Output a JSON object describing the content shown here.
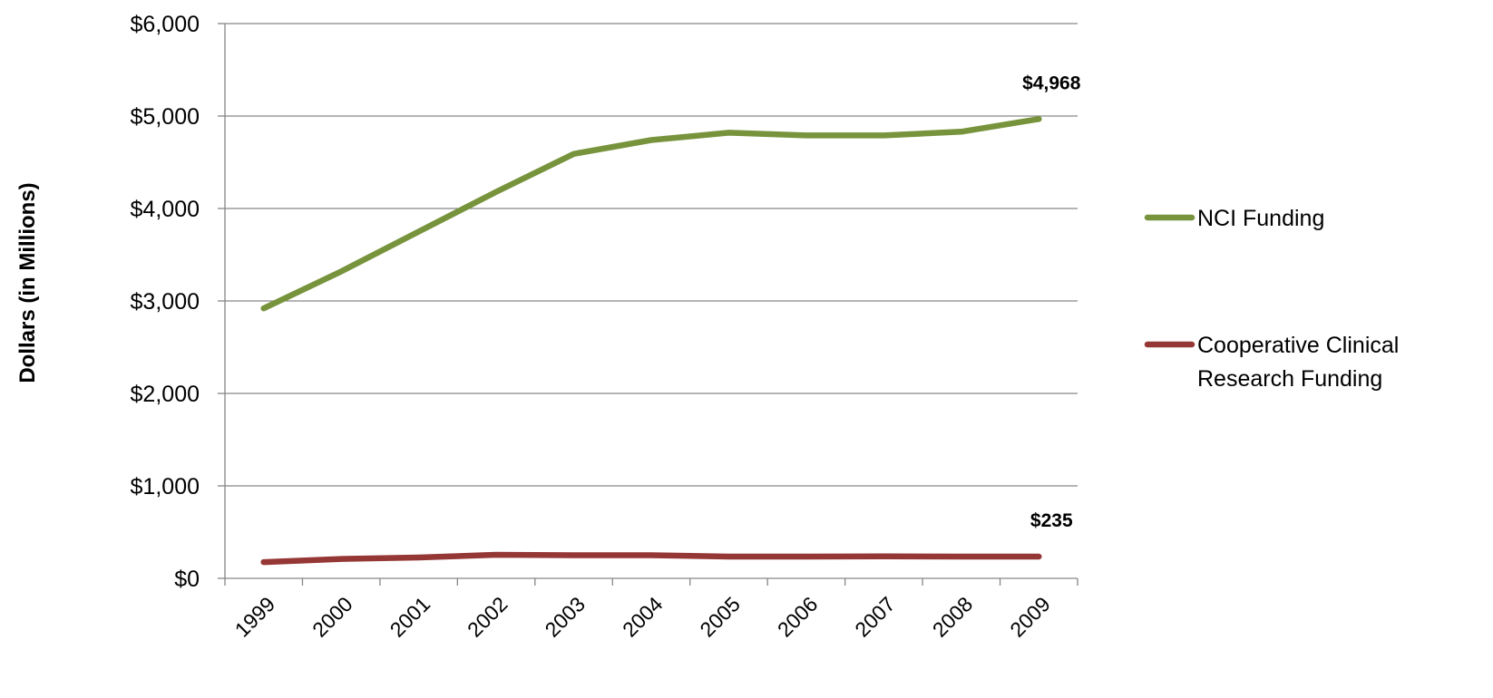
{
  "chart_data": {
    "type": "line",
    "title": "",
    "xlabel": "",
    "ylabel": "Dollars (in Millions)",
    "categories": [
      "1999",
      "2000",
      "2001",
      "2002",
      "2003",
      "2004",
      "2005",
      "2006",
      "2007",
      "2008",
      "2009"
    ],
    "ylim": [
      0,
      6000
    ],
    "y_ticks": [
      "$0",
      "$1,000",
      "$2,000",
      "$3,000",
      "$4,000",
      "$5,000",
      "$6,000"
    ],
    "grid": true,
    "legend_position": "right",
    "series": [
      {
        "name": "NCI Funding",
        "color": "#77933C",
        "values": [
          2920,
          3320,
          3750,
          4180,
          4590,
          4740,
          4820,
          4790,
          4790,
          4830,
          4968
        ],
        "end_label": "$4,968"
      },
      {
        "name": "Cooperative Clinical Research Funding",
        "legend_lines": [
          "Cooperative Clinical",
          "Research Funding"
        ],
        "color": "#953735",
        "values": [
          175,
          210,
          225,
          255,
          250,
          250,
          235,
          235,
          238,
          235,
          235
        ],
        "end_label": "$235"
      }
    ]
  }
}
